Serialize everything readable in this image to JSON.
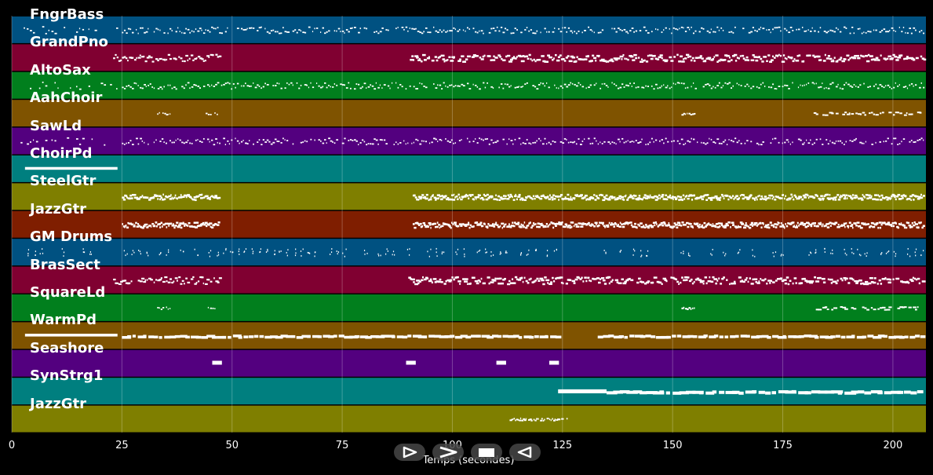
{
  "colors": {
    "background": "#000000",
    "notes": "#ffffff",
    "grid": "#ffffff"
  },
  "tracks": [
    {
      "name": "FngrBass",
      "color": "#005181",
      "density": "sparse-dots"
    },
    {
      "name": "GrandPno",
      "color": "#800031",
      "density": "mixed"
    },
    {
      "name": "AltoSax",
      "color": "#017f1d",
      "density": "sparse-dots"
    },
    {
      "name": "AahChoir",
      "color": "#7f5300",
      "density": "rare"
    },
    {
      "name": "SawLd",
      "color": "#53007f",
      "density": "sparse-dots"
    },
    {
      "name": "ChoirPd",
      "color": "#007f7f",
      "density": "intro"
    },
    {
      "name": "SteelGtr",
      "color": "#7f7f00",
      "density": "dense"
    },
    {
      "name": "JazzGtr",
      "color": "#7f1e00",
      "density": "dense"
    },
    {
      "name": "GM Drums",
      "color": "#005181",
      "density": "drums"
    },
    {
      "name": "BrasSect",
      "color": "#800031",
      "density": "mixed"
    },
    {
      "name": "SquareLd",
      "color": "#017f1d",
      "density": "rare"
    },
    {
      "name": "WarmPd",
      "color": "#7f5300",
      "density": "sustained"
    },
    {
      "name": "Seashore",
      "color": "#53007f",
      "density": "blips"
    },
    {
      "name": "SynStrg1",
      "color": "#007f7f",
      "density": "late-sustained"
    },
    {
      "name": "JazzGtr",
      "color": "#7f7f00",
      "density": "one-phrase"
    }
  ],
  "x_axis": {
    "label": "Temps (secondes)",
    "ticks": [
      0,
      25,
      50,
      75,
      100,
      125,
      150,
      175,
      200
    ],
    "range": [
      0,
      207.5
    ]
  },
  "playback_controls": [
    {
      "name": "play-icon"
    },
    {
      "name": "forward-icon"
    },
    {
      "name": "stop-icon"
    },
    {
      "name": "rewind-icon"
    }
  ]
}
